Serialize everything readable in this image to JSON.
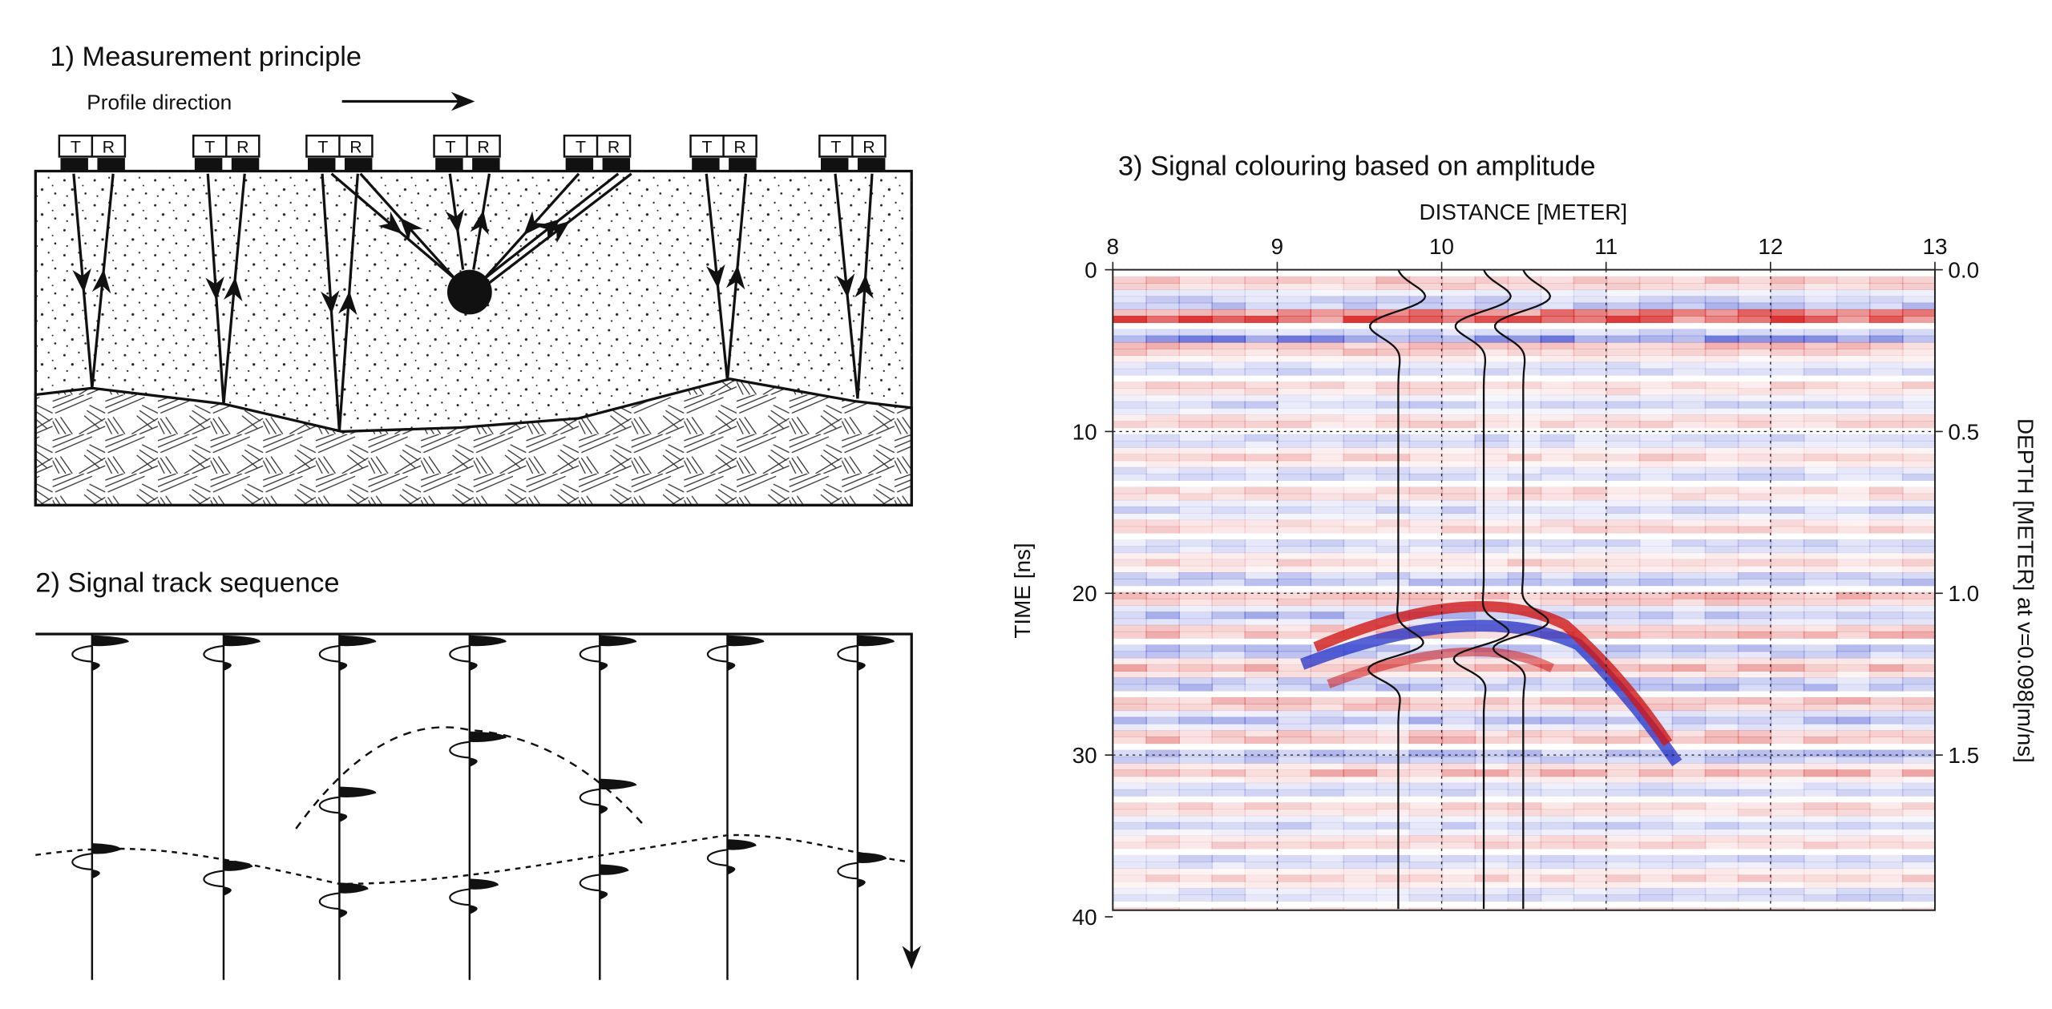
{
  "panel1": {
    "title": "1) Measurement principle",
    "profile_direction": "Profile direction",
    "antennas": [
      {
        "t": "T",
        "r": "R"
      },
      {
        "t": "T",
        "r": "R"
      },
      {
        "t": "T",
        "r": "R"
      },
      {
        "t": "T",
        "r": "R"
      },
      {
        "t": "T",
        "r": "R"
      },
      {
        "t": "T",
        "r": "R"
      },
      {
        "t": "T",
        "r": "R"
      }
    ]
  },
  "panel2": {
    "title": "2) Signal track sequence"
  },
  "panel3": {
    "title": "3) Signal colouring based on amplitude",
    "x_label": "DISTANCE [METER]",
    "xlim": [
      8,
      13
    ],
    "xticks": [
      8,
      9,
      10,
      11,
      12,
      13
    ],
    "y_label": "TIME [ns]",
    "ylim": [
      0,
      40
    ],
    "yticks": [
      0,
      10,
      20,
      30,
      40
    ],
    "y2_label": "DEPTH [METER] at v=0.098[m/ns]",
    "y2lim": [
      0,
      2
    ],
    "y2ticks": [
      {
        "value": 0,
        "label": "0.0"
      },
      0.5,
      {
        "value": 1,
        "label": "1.0"
      },
      1.5
    ]
  }
}
